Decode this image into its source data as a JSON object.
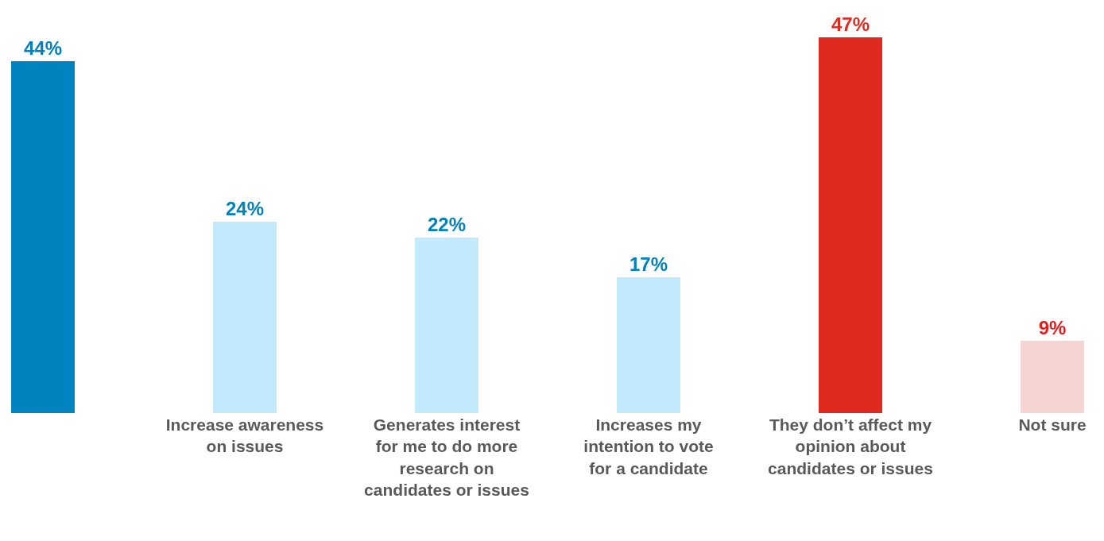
{
  "chart_data": {
    "type": "bar",
    "categories": [
      null,
      "Increase awareness on issues",
      "Generates interest for me to do more research on candidates or issues",
      "Increases my intention to vote for a candidate",
      "They don’t affect my opinion about candidates or issues",
      "Not sure"
    ],
    "values": [
      44,
      24,
      22,
      17,
      47,
      9
    ],
    "value_labels": [
      "44%",
      "24%",
      "22%",
      "17%",
      "47%",
      "9%"
    ],
    "colors": [
      "#0083bf",
      "#c2eafc",
      "#c2eafc",
      "#c2eafc",
      "#de2a1f",
      "#f7d4d4"
    ]
  }
}
